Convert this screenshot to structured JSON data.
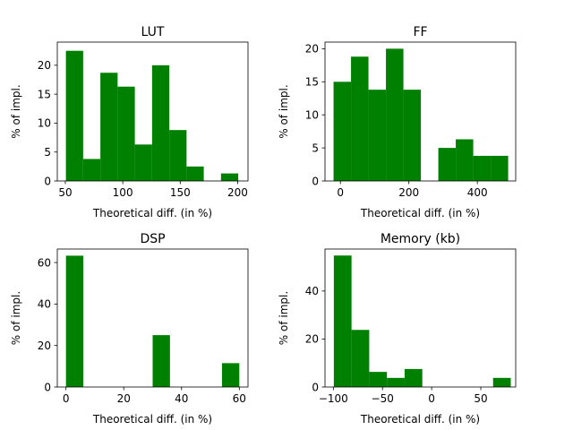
{
  "chart_data": [
    {
      "type": "bar",
      "title": "LUT",
      "xlabel": "Theoretical diff. (in %)",
      "ylabel": "% of impl.",
      "xlim": [
        43,
        209
      ],
      "ylim": [
        0,
        24
      ],
      "xticks": [
        50,
        100,
        150,
        200
      ],
      "yticks": [
        0,
        5,
        10,
        15,
        20
      ],
      "bins": [
        {
          "x0": 50.5,
          "x1": 65.5,
          "value": 22.5
        },
        {
          "x0": 65.5,
          "x1": 80.5,
          "value": 3.8
        },
        {
          "x0": 80.5,
          "x1": 95.5,
          "value": 18.7
        },
        {
          "x0": 95.5,
          "x1": 110.5,
          "value": 16.3
        },
        {
          "x0": 110.5,
          "x1": 125.5,
          "value": 6.3
        },
        {
          "x0": 125.5,
          "x1": 140.5,
          "value": 20.0
        },
        {
          "x0": 140.5,
          "x1": 155.5,
          "value": 8.8
        },
        {
          "x0": 155.5,
          "x1": 170.5,
          "value": 2.5
        },
        {
          "x0": 170.5,
          "x1": 185.5,
          "value": 0
        },
        {
          "x0": 185.5,
          "x1": 200.5,
          "value": 1.3
        }
      ],
      "color": "#008000"
    },
    {
      "type": "bar",
      "title": "FF",
      "xlabel": "Theoretical diff. (in %)",
      "ylabel": "% of impl.",
      "xlim": [
        -45,
        512
      ],
      "ylim": [
        0,
        21
      ],
      "xticks": [
        0,
        200,
        400
      ],
      "yticks": [
        0,
        5,
        10,
        15,
        20
      ],
      "bins": [
        {
          "x0": -20,
          "x1": 31,
          "value": 15.0
        },
        {
          "x0": 31,
          "x1": 82,
          "value": 18.8
        },
        {
          "x0": 82,
          "x1": 133,
          "value": 13.8
        },
        {
          "x0": 133,
          "x1": 184,
          "value": 20.0
        },
        {
          "x0": 184,
          "x1": 235,
          "value": 13.8
        },
        {
          "x0": 235,
          "x1": 286,
          "value": 0
        },
        {
          "x0": 286,
          "x1": 337,
          "value": 5.0
        },
        {
          "x0": 337,
          "x1": 388,
          "value": 6.3
        },
        {
          "x0": 388,
          "x1": 439,
          "value": 3.8
        },
        {
          "x0": 439,
          "x1": 490,
          "value": 3.8
        }
      ],
      "color": "#008000"
    },
    {
      "type": "bar",
      "title": "DSP",
      "xlabel": "Theoretical diff. (in %)",
      "ylabel": "% of impl.",
      "xlim": [
        -3,
        63
      ],
      "ylim": [
        0,
        66.5
      ],
      "xticks": [
        0,
        20,
        40,
        60
      ],
      "yticks": [
        0,
        20,
        40,
        60
      ],
      "bins": [
        {
          "x0": 0,
          "x1": 6,
          "value": 63.3
        },
        {
          "x0": 6,
          "x1": 12,
          "value": 0
        },
        {
          "x0": 12,
          "x1": 18,
          "value": 0
        },
        {
          "x0": 18,
          "x1": 24,
          "value": 0
        },
        {
          "x0": 24,
          "x1": 30,
          "value": 0
        },
        {
          "x0": 30,
          "x1": 36,
          "value": 25.0
        },
        {
          "x0": 36,
          "x1": 42,
          "value": 0
        },
        {
          "x0": 42,
          "x1": 48,
          "value": 0
        },
        {
          "x0": 48,
          "x1": 54,
          "value": 0
        },
        {
          "x0": 54,
          "x1": 60,
          "value": 11.5
        }
      ],
      "color": "#008000"
    },
    {
      "type": "bar",
      "title": "Memory (kb)",
      "xlabel": "Theoretical diff. (in %)",
      "ylabel": "% of impl.",
      "xlim": [
        -108.5,
        85.5
      ],
      "ylim": [
        0,
        57.5
      ],
      "xticks": [
        -100,
        -50,
        0,
        50
      ],
      "yticks": [
        0,
        20,
        40
      ],
      "bins": [
        {
          "x0": -99.5,
          "x1": -81.5,
          "value": 54.8
        },
        {
          "x0": -81.5,
          "x1": -63.5,
          "value": 23.8
        },
        {
          "x0": -63.5,
          "x1": -45.5,
          "value": 6.3
        },
        {
          "x0": -45.5,
          "x1": -27.5,
          "value": 3.8
        },
        {
          "x0": -27.5,
          "x1": -9.5,
          "value": 7.5
        },
        {
          "x0": -9.5,
          "x1": 8.5,
          "value": 0
        },
        {
          "x0": 8.5,
          "x1": 26.5,
          "value": 0
        },
        {
          "x0": 26.5,
          "x1": 44.5,
          "value": 0
        },
        {
          "x0": 44.5,
          "x1": 62.5,
          "value": 0
        },
        {
          "x0": 62.5,
          "x1": 80.5,
          "value": 3.8
        }
      ],
      "color": "#008000"
    }
  ]
}
